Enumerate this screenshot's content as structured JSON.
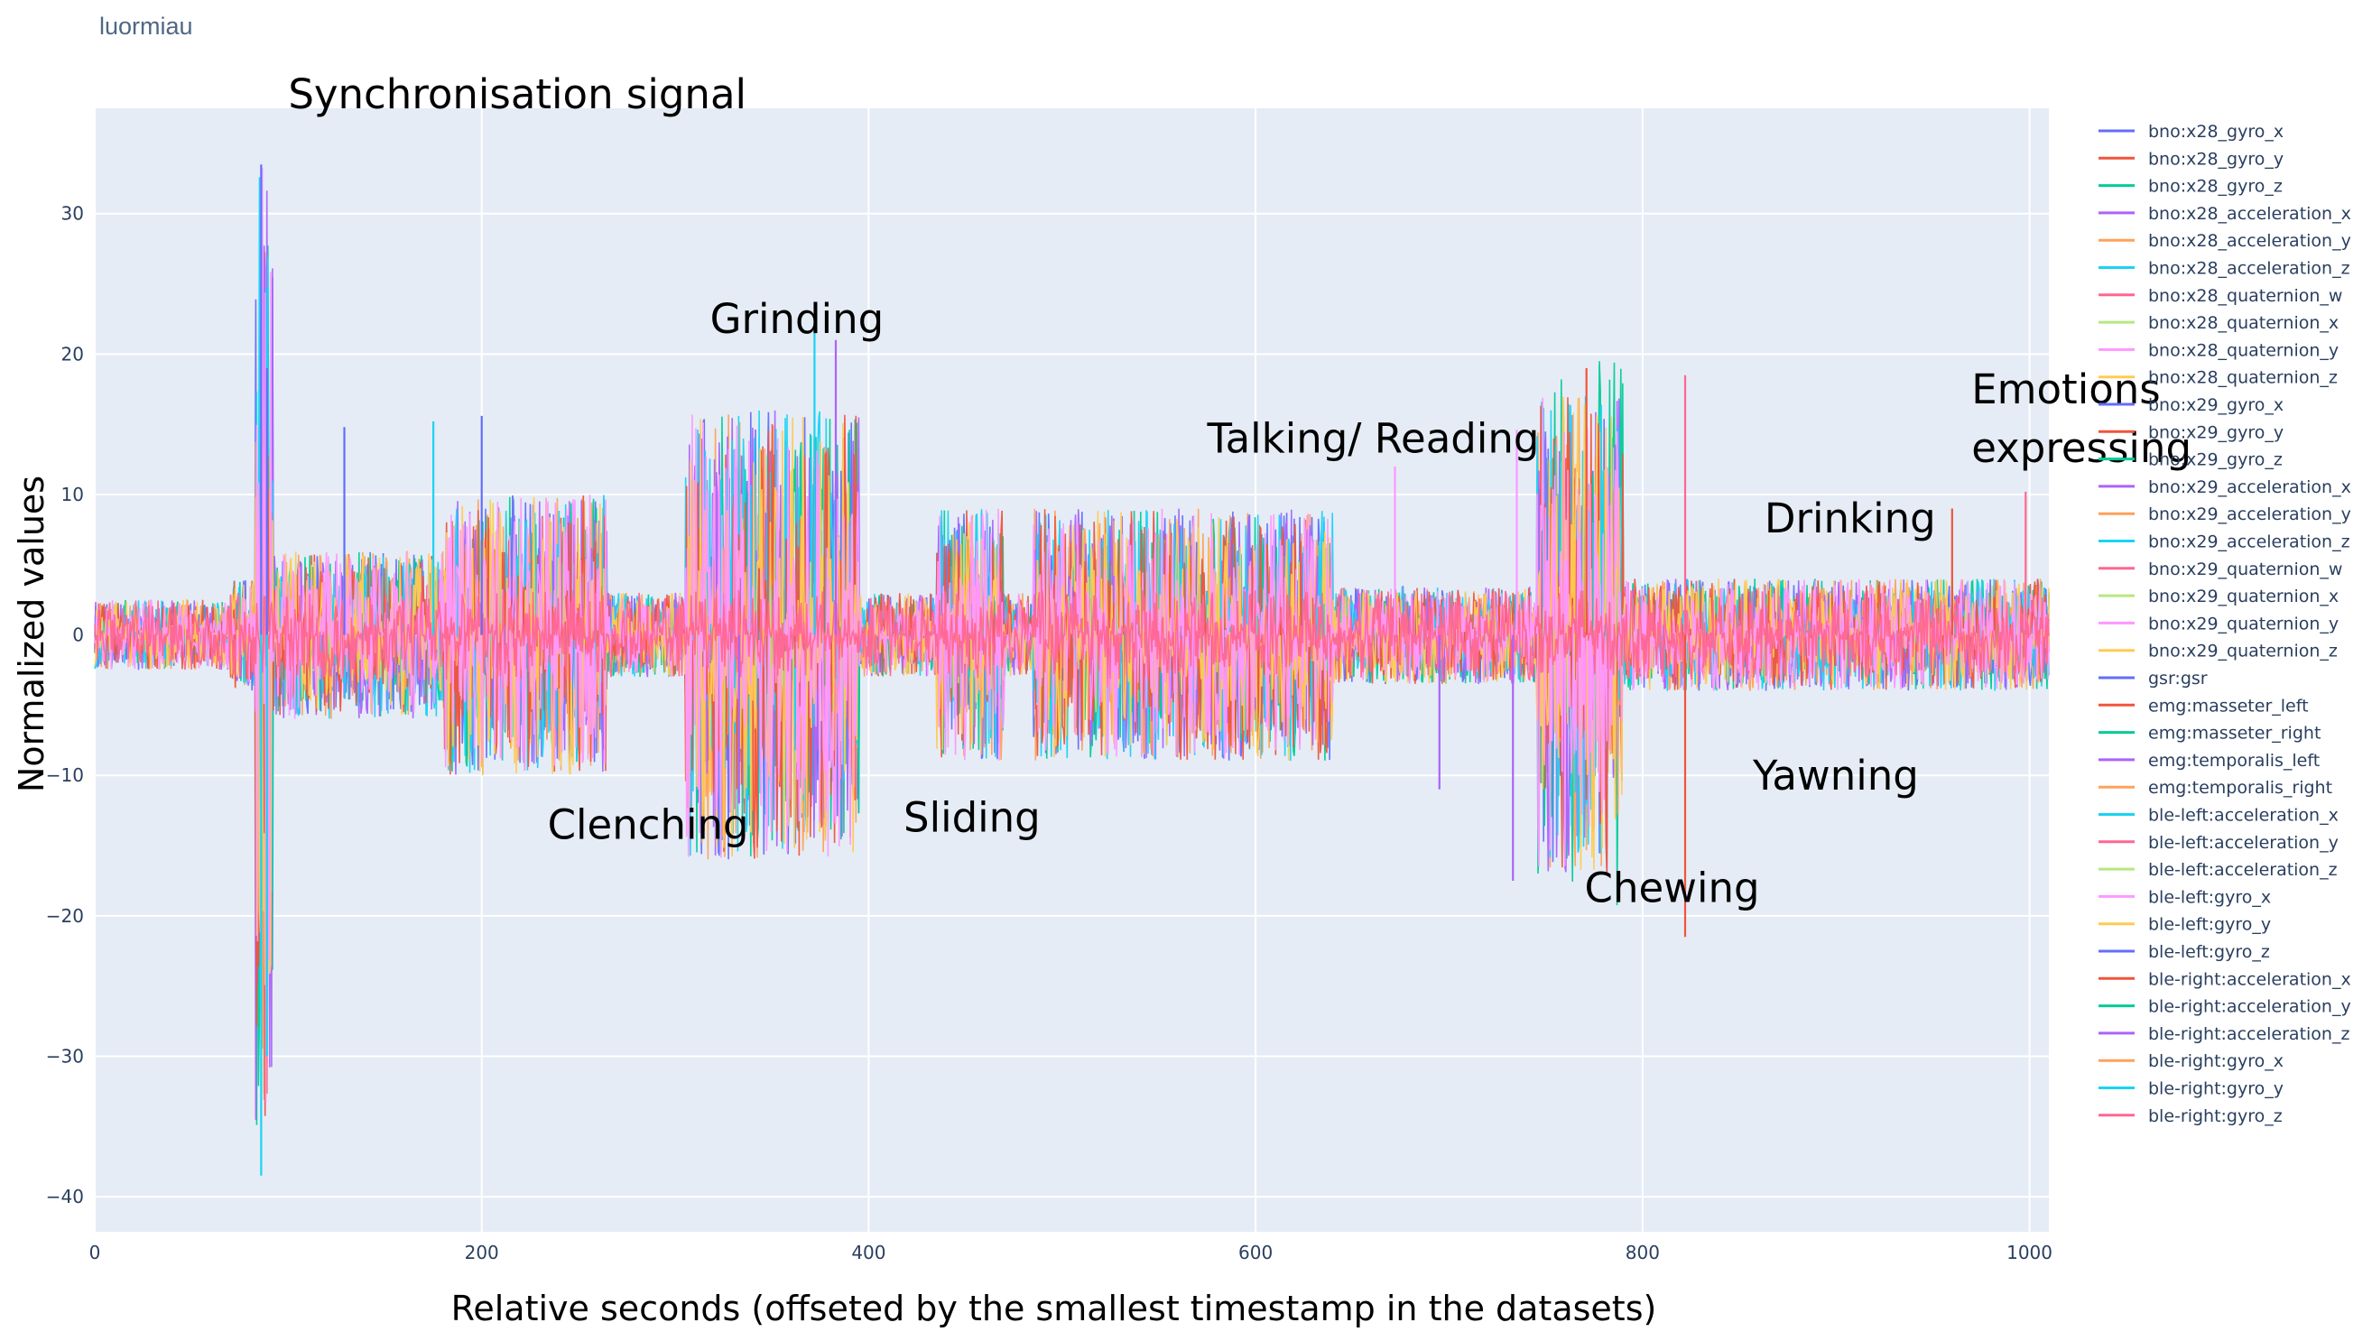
{
  "header": {
    "title": "luormiau"
  },
  "chart_data": {
    "type": "line",
    "xlabel": "Relative seconds (offseted by the smallest timestamp in the datasets)",
    "ylabel": "Normalized values",
    "xlim": [
      0,
      1010
    ],
    "ylim": [
      -42.5,
      37.5
    ],
    "xticks": [
      0,
      200,
      400,
      600,
      800,
      1000
    ],
    "yticks": [
      -40,
      -30,
      -20,
      -10,
      0,
      10,
      20,
      30
    ],
    "xtick_labels": [
      "0",
      "200",
      "400",
      "600",
      "800",
      "1000"
    ],
    "ytick_labels": [
      "−40",
      "−30",
      "−20",
      "−10",
      "0",
      "10",
      "20",
      "30"
    ],
    "grid": true,
    "legend_position": "right",
    "series": [
      {
        "name": "bno:x28_gyro_x",
        "color": "#636efa"
      },
      {
        "name": "bno:x28_gyro_y",
        "color": "#ef553b"
      },
      {
        "name": "bno:x28_gyro_z",
        "color": "#00cc96"
      },
      {
        "name": "bno:x28_acceleration_x",
        "color": "#ab63fa"
      },
      {
        "name": "bno:x28_acceleration_y",
        "color": "#ffa15a"
      },
      {
        "name": "bno:x28_acceleration_z",
        "color": "#19d3f3"
      },
      {
        "name": "bno:x28_quaternion_w",
        "color": "#ff6692"
      },
      {
        "name": "bno:x28_quaternion_x",
        "color": "#b6e880"
      },
      {
        "name": "bno:x28_quaternion_y",
        "color": "#ff97ff"
      },
      {
        "name": "bno:x28_quaternion_z",
        "color": "#fecb52"
      },
      {
        "name": "bno:x29_gyro_x",
        "color": "#636efa"
      },
      {
        "name": "bno:x29_gyro_y",
        "color": "#ef553b"
      },
      {
        "name": "bno:x29_gyro_z",
        "color": "#00cc96"
      },
      {
        "name": "bno:x29_acceleration_x",
        "color": "#ab63fa"
      },
      {
        "name": "bno:x29_acceleration_y",
        "color": "#ffa15a"
      },
      {
        "name": "bno:x29_acceleration_z",
        "color": "#19d3f3"
      },
      {
        "name": "bno:x29_quaternion_w",
        "color": "#ff6692"
      },
      {
        "name": "bno:x29_quaternion_x",
        "color": "#b6e880"
      },
      {
        "name": "bno:x29_quaternion_y",
        "color": "#ff97ff"
      },
      {
        "name": "bno:x29_quaternion_z",
        "color": "#fecb52"
      },
      {
        "name": "gsr:gsr",
        "color": "#636efa"
      },
      {
        "name": "emg:masseter_left",
        "color": "#ef553b"
      },
      {
        "name": "emg:masseter_right",
        "color": "#00cc96"
      },
      {
        "name": "emg:temporalis_left",
        "color": "#ab63fa"
      },
      {
        "name": "emg:temporalis_right",
        "color": "#ffa15a"
      },
      {
        "name": "ble-left:acceleration_x",
        "color": "#19d3f3"
      },
      {
        "name": "ble-left:acceleration_y",
        "color": "#ff6692"
      },
      {
        "name": "ble-left:acceleration_z",
        "color": "#b6e880"
      },
      {
        "name": "ble-left:gyro_x",
        "color": "#ff97ff"
      },
      {
        "name": "ble-left:gyro_y",
        "color": "#fecb52"
      },
      {
        "name": "ble-left:gyro_z",
        "color": "#636efa"
      },
      {
        "name": "ble-right:acceleration_x",
        "color": "#ef553b"
      },
      {
        "name": "ble-right:acceleration_y",
        "color": "#00cc96"
      },
      {
        "name": "ble-right:acceleration_z",
        "color": "#ab63fa"
      },
      {
        "name": "ble-right:gyro_x",
        "color": "#ffa15a"
      },
      {
        "name": "ble-right:gyro_y",
        "color": "#19d3f3"
      },
      {
        "name": "ble-right:gyro_z",
        "color": "#ff6692"
      }
    ],
    "segments": [
      {
        "start": 0,
        "end": 70,
        "amp": 2.5
      },
      {
        "start": 70,
        "end": 88,
        "amp": 4
      },
      {
        "start": 83,
        "end": 92,
        "amp": 35
      },
      {
        "start": 92,
        "end": 180,
        "amp": 6
      },
      {
        "start": 180,
        "end": 265,
        "amp": 10
      },
      {
        "start": 265,
        "end": 305,
        "amp": 3
      },
      {
        "start": 305,
        "end": 395,
        "amp": 16
      },
      {
        "start": 395,
        "end": 435,
        "amp": 3
      },
      {
        "start": 435,
        "end": 470,
        "amp": 9
      },
      {
        "start": 470,
        "end": 485,
        "amp": 3
      },
      {
        "start": 485,
        "end": 640,
        "amp": 9
      },
      {
        "start": 640,
        "end": 745,
        "amp": 3.5
      },
      {
        "start": 745,
        "end": 790,
        "amp": 17
      },
      {
        "start": 790,
        "end": 1010,
        "amp": 4
      }
    ],
    "spikes": [
      {
        "x": 86,
        "y": 33.5
      },
      {
        "x": 86,
        "y": -38.5
      },
      {
        "x": 89,
        "y": 19
      },
      {
        "x": 89,
        "y": -30
      },
      {
        "x": 129,
        "y": 14.8
      },
      {
        "x": 175,
        "y": 15.2
      },
      {
        "x": 200,
        "y": 15.6
      },
      {
        "x": 372,
        "y": 22.5
      },
      {
        "x": 383,
        "y": 21
      },
      {
        "x": 312,
        "y": -11
      },
      {
        "x": 333,
        "y": -12
      },
      {
        "x": 672,
        "y": 12
      },
      {
        "x": 695,
        "y": -11
      },
      {
        "x": 735,
        "y": 14.6
      },
      {
        "x": 733,
        "y": -17.5
      },
      {
        "x": 771,
        "y": 19
      },
      {
        "x": 822,
        "y": 18.5
      },
      {
        "x": 822,
        "y": -21.5
      },
      {
        "x": 998,
        "y": 10.2
      },
      {
        "x": 960,
        "y": 9
      }
    ],
    "annotations": [
      {
        "text": "Synchronisation signal",
        "x": 100,
        "y": 37.5
      },
      {
        "text": "Grinding",
        "x": 318,
        "y": 21.5
      },
      {
        "text": "Talking/ Reading",
        "x": 575,
        "y": 13
      },
      {
        "text": "Emotions",
        "x": 970,
        "y": 16.5
      },
      {
        "text": "expressing",
        "x": 970,
        "y": 12.3
      },
      {
        "text": "Drinking",
        "x": 863,
        "y": 7.3
      },
      {
        "text": "Clenching",
        "x": 234,
        "y": -14.5
      },
      {
        "text": "Sliding",
        "x": 418,
        "y": -14
      },
      {
        "text": "Chewing",
        "x": 770,
        "y": -19
      },
      {
        "text": "Yawning",
        "x": 857,
        "y": -11
      }
    ]
  }
}
